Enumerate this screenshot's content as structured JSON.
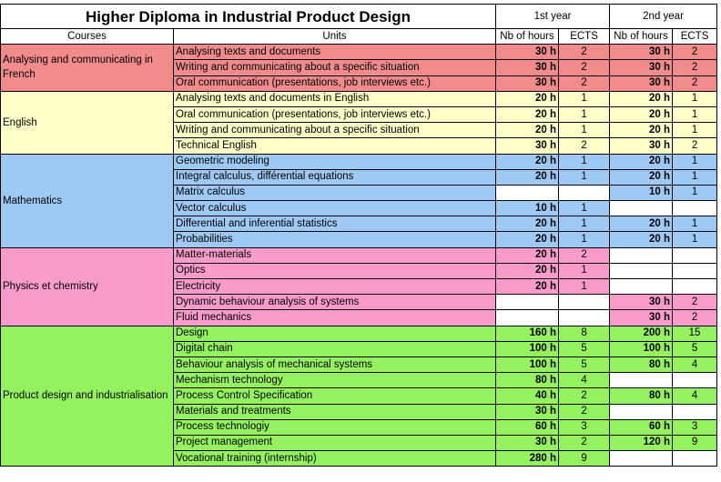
{
  "header": {
    "title": "Higher Diploma in Industrial Product Design",
    "year1": "1st year",
    "year2": "2nd year",
    "col_courses": "Courses",
    "col_units": "Units",
    "col_hours": "Nb of hours",
    "col_ects": "ECTS"
  },
  "colors": {
    "red": "#f28b8c",
    "yellow": "#ffffc8",
    "blue": "#9fc9f5",
    "pink": "#f99ccc",
    "green": "#94f15f"
  },
  "groups": [
    {
      "course": "Analysing and communicating in French",
      "color": "red",
      "units": [
        {
          "unit": "Analysing texts and documents",
          "h1": "30 h",
          "e1": "2",
          "h2": "30 h",
          "e2": "2"
        },
        {
          "unit": "Writing and communicating about a specific situation",
          "h1": "30 h",
          "e1": "2",
          "h2": "30 h",
          "e2": "2"
        },
        {
          "unit": "Oral communication (presentations, job interviews etc.)",
          "h1": "30 h",
          "e1": "2",
          "h2": "30 h",
          "e2": "2"
        }
      ]
    },
    {
      "course": "English",
      "color": "yellow",
      "units": [
        {
          "unit": "Analysing texts and documents in English",
          "h1": "20 h",
          "e1": "1",
          "h2": "20 h",
          "e2": "1"
        },
        {
          "unit": "Oral communication (presentations, job interviews etc.)",
          "h1": "20 h",
          "e1": "1",
          "h2": "20 h",
          "e2": "1"
        },
        {
          "unit": "Writing and communicating about a specific situation",
          "h1": "20 h",
          "e1": "1",
          "h2": "20 h",
          "e2": "1"
        },
        {
          "unit": "Technical English",
          "h1": "30 h",
          "e1": "2",
          "h2": "30 h",
          "e2": "2"
        }
      ]
    },
    {
      "course": "Mathematics",
      "color": "blue",
      "units": [
        {
          "unit": "Geometric modeling",
          "h1": "20 h",
          "e1": "1",
          "h2": "20 h",
          "e2": "1"
        },
        {
          "unit": "Integral calculus, différential equations",
          "h1": "20 h",
          "e1": "1",
          "h2": "20 h",
          "e2": "1"
        },
        {
          "unit": "Matrix calculus",
          "h1": "",
          "e1": "",
          "h2": "10 h",
          "e2": "1"
        },
        {
          "unit": "Vector calculus",
          "h1": "10 h",
          "e1": "1",
          "h2": "",
          "e2": ""
        },
        {
          "unit": "Differential and inferential statistics",
          "h1": "20 h",
          "e1": "1",
          "h2": "20 h",
          "e2": "1"
        },
        {
          "unit": "Probabilities",
          "h1": "20 h",
          "e1": "1",
          "h2": "20 h",
          "e2": "1"
        }
      ]
    },
    {
      "course": "Physics et chemistry",
      "color": "pink",
      "units": [
        {
          "unit": "Matter-materials",
          "h1": "20 h",
          "e1": "2",
          "h2": "",
          "e2": ""
        },
        {
          "unit": "Optics",
          "h1": "20 h",
          "e1": "1",
          "h2": "",
          "e2": ""
        },
        {
          "unit": "Electricity",
          "h1": "20 h",
          "e1": "1",
          "h2": "",
          "e2": ""
        },
        {
          "unit": "Dynamic behaviour analysis of systems",
          "h1": "",
          "e1": "",
          "h2": "30 h",
          "e2": "2"
        },
        {
          "unit": "Fluid mechanics",
          "h1": "",
          "e1": "",
          "h2": "30 h",
          "e2": "2"
        }
      ]
    },
    {
      "course": "Product design and industrialisation",
      "color": "green",
      "units": [
        {
          "unit": "Design",
          "h1": "160 h",
          "e1": "8",
          "h2": "200 h",
          "e2": "15"
        },
        {
          "unit": "Digital chain",
          "h1": "100 h",
          "e1": "5",
          "h2": "100 h",
          "e2": "5"
        },
        {
          "unit": "Behaviour analysis of mechanical systems",
          "h1": "100 h",
          "e1": "5",
          "h2": "80 h",
          "e2": "4"
        },
        {
          "unit": "Mechanism technology",
          "h1": "80 h",
          "e1": "4",
          "h2": "",
          "e2": ""
        },
        {
          "unit": "Process Control Specification",
          "h1": "40 h",
          "e1": "2",
          "h2": "80 h",
          "e2": "4"
        },
        {
          "unit": "Materials and treatments",
          "h1": "30 h",
          "e1": "2",
          "h2": "",
          "e2": ""
        },
        {
          "unit": "Process technologiy",
          "h1": "60 h",
          "e1": "3",
          "h2": "60 h",
          "e2": "3"
        },
        {
          "unit": "Project management",
          "h1": "30 h",
          "e1": "2",
          "h2": "120 h",
          "e2": "9"
        },
        {
          "unit": "Vocational training (internship)",
          "h1": "280 h",
          "e1": "9",
          "h2": "",
          "e2": ""
        }
      ]
    }
  ]
}
